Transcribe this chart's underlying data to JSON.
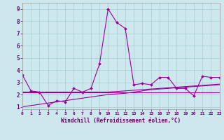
{
  "xlabel": "Windchill (Refroidissement éolien,°C)",
  "background_color": "#cce8ee",
  "grid_color": "#aacccc",
  "line_color": "#990099",
  "xlim": [
    0,
    23
  ],
  "ylim": [
    0.8,
    9.5
  ],
  "xticks": [
    0,
    1,
    2,
    3,
    4,
    5,
    6,
    7,
    8,
    9,
    10,
    11,
    12,
    13,
    14,
    15,
    16,
    17,
    18,
    19,
    20,
    21,
    22,
    23
  ],
  "yticks": [
    1,
    2,
    3,
    4,
    5,
    6,
    7,
    8,
    9
  ],
  "series": [
    [
      3.6,
      2.3,
      2.2,
      1.1,
      1.5,
      1.4,
      2.5,
      2.2,
      2.5,
      4.5,
      9.0,
      7.9,
      7.4,
      2.8,
      2.9,
      2.8,
      3.4,
      3.4,
      2.5,
      2.5,
      1.9,
      3.5,
      3.4,
      3.4
    ],
    [
      2.2,
      2.2,
      2.2,
      2.2,
      2.2,
      2.2,
      2.2,
      2.2,
      2.2,
      2.2,
      2.2,
      2.2,
      2.2,
      2.2,
      2.2,
      2.2,
      2.2,
      2.2,
      2.2,
      2.2,
      2.2,
      2.2,
      2.2,
      2.2
    ],
    [
      1.0,
      1.1,
      1.2,
      1.3,
      1.4,
      1.5,
      1.6,
      1.7,
      1.8,
      1.9,
      2.0,
      2.05,
      2.1,
      2.2,
      2.3,
      2.4,
      2.45,
      2.5,
      2.55,
      2.6,
      2.65,
      2.7,
      2.75,
      2.8
    ],
    [
      2.2,
      2.2,
      2.2,
      2.2,
      2.2,
      2.2,
      2.2,
      2.2,
      2.2,
      2.2,
      2.2,
      2.25,
      2.3,
      2.35,
      2.4,
      2.45,
      2.5,
      2.55,
      2.6,
      2.65,
      2.7,
      2.75,
      2.8,
      2.85
    ]
  ]
}
